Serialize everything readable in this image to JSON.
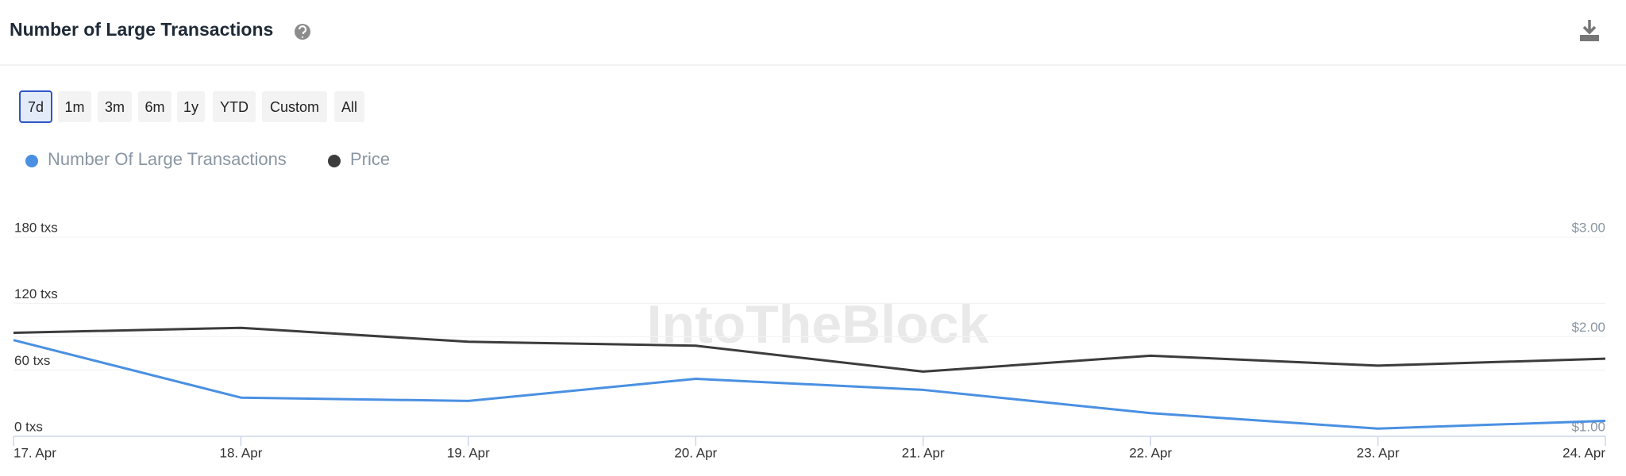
{
  "header": {
    "title": "Number of Large Transactions"
  },
  "range_buttons": [
    "7d",
    "1m",
    "3m",
    "6m",
    "1y",
    "YTD",
    "Custom",
    "All"
  ],
  "active_range": "7d",
  "chart_data": {
    "type": "line",
    "watermark": "IntoTheBlock",
    "categories": [
      "17. Apr",
      "18. Apr",
      "19. Apr",
      "20. Apr",
      "21. Apr",
      "22. Apr",
      "23. Apr",
      "24. Apr"
    ],
    "series": [
      {
        "name": "Number Of Large Transactions",
        "color": "#4a90e2",
        "values": [
          87,
          35,
          32,
          52,
          42,
          21,
          7,
          14
        ]
      },
      {
        "name": "Price",
        "color": "#3c3c3c",
        "axis": "y2",
        "values": [
          2.04,
          2.09,
          1.95,
          1.91,
          1.65,
          1.81,
          1.71,
          1.78
        ]
      }
    ],
    "ylim": [
      0,
      180
    ],
    "yticks": [
      {
        "value": 0,
        "label": "0 txs"
      },
      {
        "value": 60,
        "label": "60 txs"
      },
      {
        "value": 120,
        "label": "120 txs"
      },
      {
        "value": 180,
        "label": "180 txs"
      }
    ],
    "y2lim": [
      1,
      3
    ],
    "y2ticks": [
      {
        "value": 1,
        "label": "$1.00"
      },
      {
        "value": 2,
        "label": "$2.00"
      },
      {
        "value": 3,
        "label": "$3.00"
      }
    ],
    "grid": true
  }
}
